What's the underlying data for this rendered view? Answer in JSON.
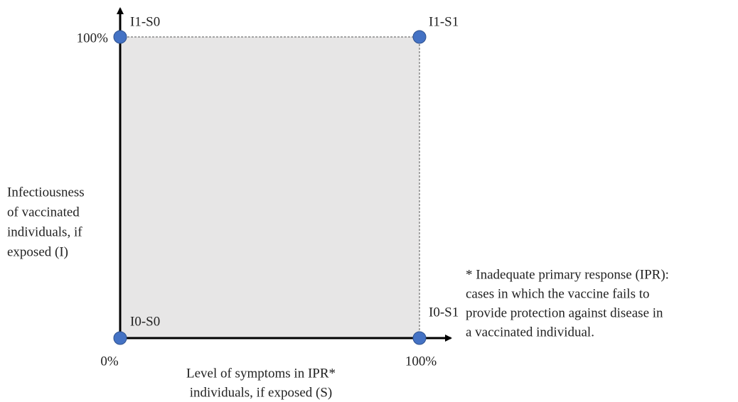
{
  "y_axis": {
    "label_lines": [
      "Infectiousness",
      "of vaccinated",
      "individuals, if",
      "exposed (I)"
    ],
    "top_label": "100%"
  },
  "x_axis": {
    "label_lines": [
      "Level of symptoms in IPR*",
      "individuals, if exposed (S)"
    ],
    "start_label": "0%",
    "end_label": "100%"
  },
  "nodes": [
    {
      "label": "I1-S0"
    },
    {
      "label": "I1-S1"
    },
    {
      "label": "I0-S0"
    },
    {
      "label": "I0-S1"
    }
  ],
  "footnote": {
    "lines": [
      "* Inadequate primary response (IPR):",
      "cases in which the vaccine fails to",
      "provide protection against disease in",
      "a vaccinated individual."
    ]
  }
}
